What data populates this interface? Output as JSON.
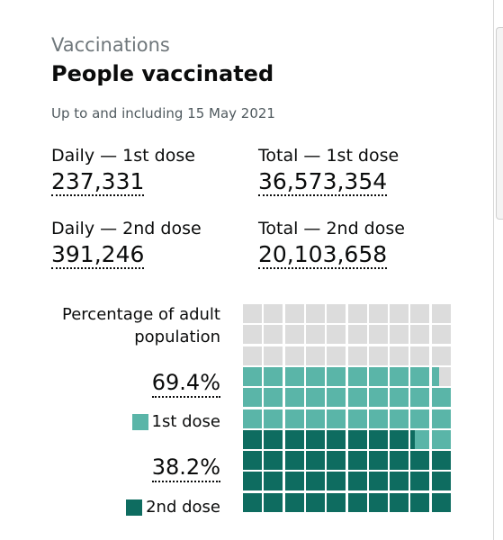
{
  "header": {
    "kicker": "Vaccinations",
    "title": "People vaccinated",
    "date": "Up to and including 15 May 2021"
  },
  "stats": [
    {
      "label": "Daily — 1st dose",
      "value": "237,331"
    },
    {
      "label": "Total — 1st dose",
      "value": "36,573,354"
    },
    {
      "label": "Daily — 2nd dose",
      "value": "391,246"
    },
    {
      "label": "Total — 2nd dose",
      "value": "20,103,658"
    }
  ],
  "chart_data": {
    "type": "waffle",
    "title": "Percentage of adult population",
    "series": [
      {
        "name": "1st dose",
        "color": "#5ab5a8",
        "values": [
          69.4
        ],
        "value_labels": [
          "69.4%"
        ]
      },
      {
        "name": "2nd dose",
        "color": "#0e6c60",
        "values": [
          38.2
        ],
        "value_labels": [
          "38.2%"
        ]
      }
    ]
  }
}
